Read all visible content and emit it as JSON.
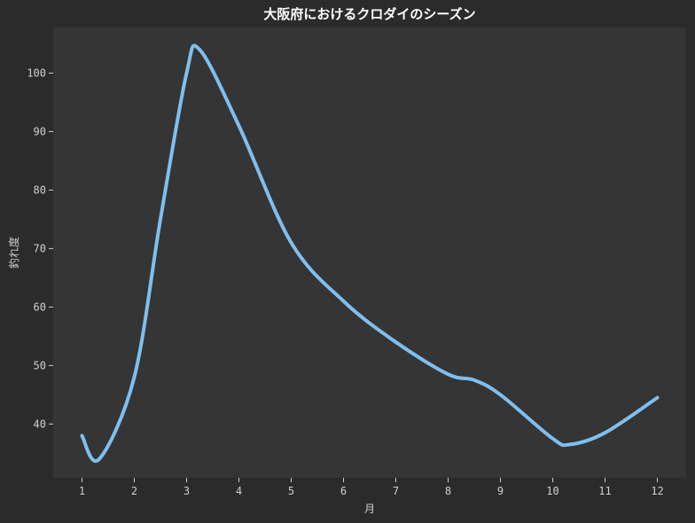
{
  "chart_data": {
    "type": "line",
    "title": "大阪府におけるクロダイのシーズン",
    "xlabel": "月",
    "ylabel": "釣れ度",
    "x": [
      1,
      1.33,
      2,
      2.5,
      3,
      3.25,
      4,
      5,
      6,
      7,
      8,
      8.5,
      9,
      10,
      10.33,
      11,
      12
    ],
    "y": [
      38,
      34,
      48,
      75,
      100,
      104,
      91,
      71,
      61,
      54,
      48.5,
      47.5,
      45,
      37.5,
      36.5,
      38.5,
      44.5
    ],
    "xticks": [
      1,
      2,
      3,
      4,
      5,
      6,
      7,
      8,
      9,
      10,
      11,
      12
    ],
    "yticks": [
      40,
      50,
      60,
      70,
      80,
      90,
      100
    ],
    "xlim": [
      0.45,
      12.55
    ],
    "ylim": [
      30.8,
      107.8
    ],
    "grid": false,
    "colors": {
      "line": "#7fbfef",
      "plot_background": "#353535",
      "page_background": "#2b2b2b"
    }
  }
}
